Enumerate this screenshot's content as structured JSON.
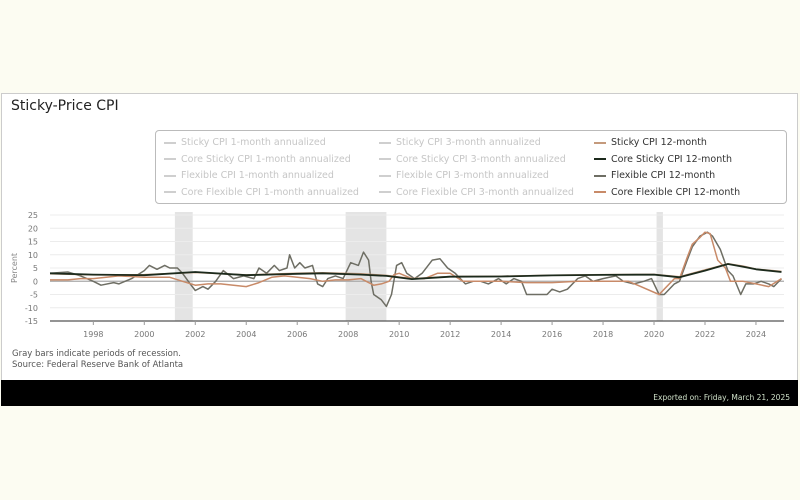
{
  "chart_data": {
    "type": "line",
    "title": "Sticky-Price CPI",
    "ylabel": "Percent",
    "xlabel": "",
    "ylim": [
      -15,
      25
    ],
    "xlim": [
      1996.3,
      2025.1
    ],
    "yticks": [
      "25",
      "20",
      "15",
      "10",
      "5",
      "0",
      "-5",
      "-10",
      "-15"
    ],
    "xticks": [
      "1998",
      "2000",
      "2002",
      "2004",
      "2006",
      "2008",
      "2010",
      "2012",
      "2014",
      "2016",
      "2018",
      "2020",
      "2022",
      "2024"
    ],
    "grid": true,
    "legend_position": "top",
    "recessions": [
      [
        2001.2,
        2001.9
      ],
      [
        2007.9,
        2009.5
      ],
      [
        2020.1,
        2020.35
      ]
    ],
    "legend": [
      {
        "name": "Sticky CPI 1-month annualized",
        "active": false,
        "color": "#cfcfcf"
      },
      {
        "name": "Core Sticky CPI 1-month annualized",
        "active": false,
        "color": "#cfcfcf"
      },
      {
        "name": "Flexible CPI 1-month annualized",
        "active": false,
        "color": "#cfcfcf"
      },
      {
        "name": "Core Flexible CPI 1-month annualized",
        "active": false,
        "color": "#cfcfcf"
      },
      {
        "name": "Sticky CPI 3-month annualized",
        "active": false,
        "color": "#cfcfcf"
      },
      {
        "name": "Core Sticky CPI 3-month annualized",
        "active": false,
        "color": "#cfcfcf"
      },
      {
        "name": "Flexible CPI 3-month annualized",
        "active": false,
        "color": "#cfcfcf"
      },
      {
        "name": "Core Flexible CPI 3-month annualized",
        "active": false,
        "color": "#cfcfcf"
      },
      {
        "name": "Sticky CPI 12-month",
        "active": true,
        "color": "#c49a7c"
      },
      {
        "name": "Core Sticky CPI 12-month",
        "active": true,
        "color": "#1c2a1c"
      },
      {
        "name": "Flexible CPI 12-month",
        "active": true,
        "color": "#6e6e64"
      },
      {
        "name": "Core Flexible CPI 12-month",
        "active": true,
        "color": "#c88a68"
      }
    ],
    "series": [
      {
        "name": "Flexible CPI 12-month",
        "color": "#6e6e64",
        "x": [
          1996.3,
          1997,
          1997.5,
          1998,
          1998.3,
          1998.8,
          1999,
          1999.5,
          2000,
          2000.2,
          2000.5,
          2000.8,
          2001,
          2001.3,
          2001.5,
          2001.8,
          2002,
          2002.3,
          2002.5,
          2002.8,
          2003.1,
          2003.5,
          2003.9,
          2004.3,
          2004.5,
          2004.8,
          2005.1,
          2005.3,
          2005.6,
          2005.7,
          2005.9,
          2006.1,
          2006.3,
          2006.6,
          2006.8,
          2007,
          2007.2,
          2007.5,
          2007.8,
          2008.1,
          2008.4,
          2008.6,
          2008.8,
          2008.9,
          2009,
          2009.3,
          2009.5,
          2009.7,
          2009.9,
          2010.1,
          2010.3,
          2010.6,
          2010.9,
          2011.3,
          2011.6,
          2011.9,
          2012.2,
          2012.6,
          2012.9,
          2013.2,
          2013.5,
          2013.9,
          2014.2,
          2014.5,
          2014.8,
          2015,
          2015.4,
          2015.8,
          2016,
          2016.3,
          2016.6,
          2017,
          2017.3,
          2017.6,
          2018,
          2018.5,
          2018.8,
          2019.2,
          2019.6,
          2019.9,
          2020.2,
          2020.4,
          2020.8,
          2021,
          2021.3,
          2021.5,
          2021.8,
          2022.1,
          2022.3,
          2022.6,
          2022.9,
          2023.1,
          2023.4,
          2023.6,
          2023.9,
          2024.2,
          2024.5,
          2024.7,
          2025
        ],
        "y": [
          3,
          3.5,
          2,
          0,
          -1.5,
          -0.5,
          -1,
          1,
          4,
          6,
          4.5,
          6,
          5,
          5,
          3,
          -1,
          -3.5,
          -2,
          -3,
          0,
          4,
          1,
          2,
          1,
          5,
          3,
          6,
          4,
          5,
          10,
          5,
          7,
          5,
          6,
          -1,
          -2,
          1,
          2,
          1,
          7,
          6,
          11,
          8,
          0,
          -5,
          -7,
          -9.5,
          -5,
          6,
          7,
          3,
          1,
          3,
          8,
          8.5,
          5,
          3,
          -1,
          0,
          0,
          -1,
          1,
          -1,
          1,
          0,
          -5,
          -5,
          -5,
          -3,
          -4,
          -3,
          1,
          2,
          0,
          1,
          2,
          0,
          -1,
          0,
          1,
          -5,
          -5,
          -1,
          0,
          8,
          13,
          17,
          18.5,
          17,
          12,
          4,
          2,
          -5,
          -1,
          -1,
          0,
          -1,
          -2,
          1
        ]
      },
      {
        "name": "Core Flexible CPI 12-month",
        "color": "#c88a68",
        "x": [
          1996.3,
          1997,
          1997.5,
          1998,
          1998.5,
          1999,
          1999.5,
          2000,
          2000.5,
          2001,
          2001.5,
          2002,
          2002.5,
          2003,
          2003.5,
          2004,
          2004.5,
          2005,
          2005.5,
          2006,
          2006.5,
          2007,
          2007.5,
          2008,
          2008.5,
          2009,
          2009.3,
          2009.6,
          2009.8,
          2010,
          2010.5,
          2011,
          2011.5,
          2012,
          2012.5,
          2013,
          2014,
          2015,
          2016,
          2017,
          2018,
          2019,
          2020.2,
          2020.4,
          2020.8,
          2021,
          2021.3,
          2021.5,
          2021.8,
          2022,
          2022.2,
          2022.5,
          2022.8,
          2023,
          2023.5,
          2024,
          2024.5,
          2025
        ],
        "y": [
          0.5,
          0.5,
          1,
          1,
          1.5,
          2,
          1.8,
          1.5,
          1.5,
          1.5,
          0,
          -1.5,
          -1,
          -1,
          -1.5,
          -2,
          -0.5,
          1.5,
          2,
          1.5,
          1,
          0,
          0.5,
          0.5,
          1,
          -1.5,
          -1,
          0,
          2.5,
          3,
          1,
          1,
          3,
          3,
          0,
          0,
          0,
          -0.5,
          -0.5,
          0,
          0,
          0,
          -5,
          -3,
          1,
          1,
          9,
          14,
          16.5,
          18.5,
          18,
          8,
          5,
          0,
          0,
          -1,
          -2,
          1
        ]
      },
      {
        "name": "Sticky CPI 12-month",
        "color": "#c49a7c",
        "x": [
          1996.3,
          1998,
          2000,
          2002,
          2004,
          2006,
          2007,
          2008.5,
          2009.5,
          2010.5,
          2012,
          2014,
          2016,
          2018,
          2020,
          2021,
          2022,
          2022.9,
          2023.5,
          2024,
          2025
        ],
        "y": [
          2.8,
          2.4,
          2.5,
          3.3,
          2.4,
          3,
          3.2,
          2.8,
          2.2,
          1,
          1.8,
          1.9,
          2.3,
          2.5,
          2.6,
          1.7,
          4.3,
          6.6,
          5.7,
          4.6,
          3.7
        ]
      },
      {
        "name": "Core Sticky CPI 12-month",
        "color": "#1c2a1c",
        "x": [
          1996.3,
          1998,
          2000,
          2002,
          2004,
          2006,
          2007,
          2008.5,
          2009.5,
          2010.5,
          2012,
          2014,
          2016,
          2018,
          2020,
          2021,
          2022,
          2022.9,
          2023.5,
          2024,
          2025
        ],
        "y": [
          3,
          2.5,
          2.3,
          3.5,
          2.3,
          2.8,
          3,
          2.5,
          2,
          0.8,
          1.7,
          1.8,
          2.2,
          2.4,
          2.5,
          1.5,
          4,
          6.5,
          5.5,
          4.5,
          3.5
        ]
      }
    ]
  },
  "notes": {
    "recession": "Gray bars indicate periods of recession.",
    "source": "Source: Federal Reserve Bank of Atlanta"
  },
  "footer": {
    "exported": "Exported on: Friday, March 21, 2025"
  }
}
